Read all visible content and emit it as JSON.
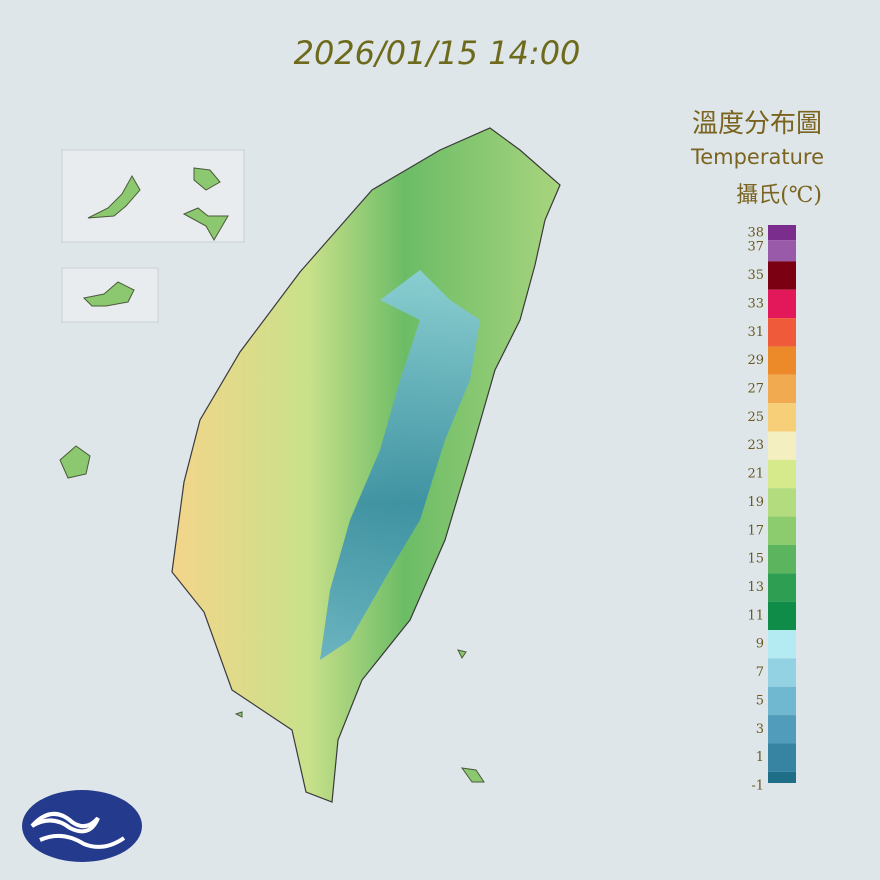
{
  "timestamp": "2026/01/15 14:00",
  "legend": {
    "title": "溫度分布圖",
    "subtitle": "Temperature",
    "unit": "攝氏(℃)",
    "labels": [
      38,
      37,
      35,
      33,
      31,
      29,
      27,
      25,
      23,
      21,
      19,
      17,
      15,
      13,
      11,
      9,
      7,
      5,
      3,
      1,
      -1
    ],
    "colors": [
      "#7b2d8e",
      "#9a5aaa",
      "#7a0012",
      "#e2185a",
      "#ee5a3a",
      "#ec8a2a",
      "#f2aa50",
      "#f6cf78",
      "#f4efc0",
      "#d6ea8c",
      "#b2dc7e",
      "#8ccc6e",
      "#5cb45e",
      "#2e9e52",
      "#0e8c48",
      "#b4eaf2",
      "#92d2e2",
      "#70b8d0",
      "#509cba",
      "#3684a2",
      "#1e6e88"
    ]
  }
}
